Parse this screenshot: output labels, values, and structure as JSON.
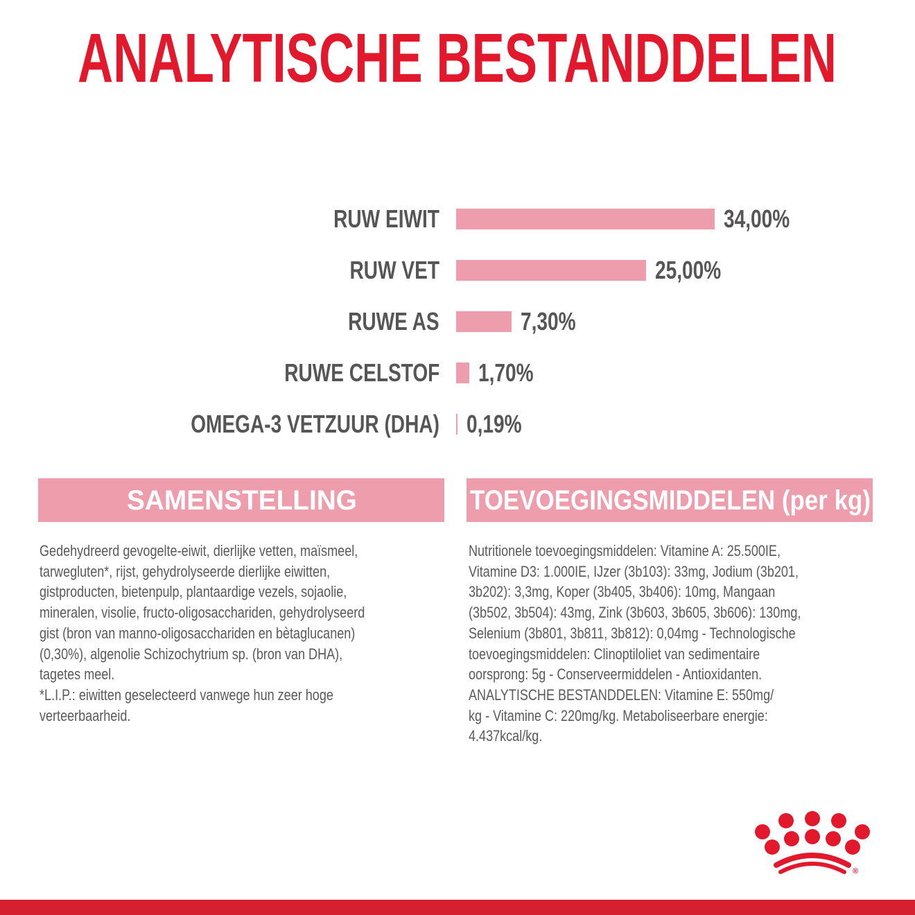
{
  "chart_data": {
    "type": "bar",
    "orientation": "horizontal",
    "title": "ANALYTISCHE BESTANDDELEN",
    "categories": [
      "RUW EIWIT",
      "RUW VET",
      "RUWE AS",
      "RUWE CELSTOF",
      "OMEGA-3 VETZUUR (DHA)"
    ],
    "values": [
      34.0,
      25.0,
      7.3,
      1.7,
      0.19
    ],
    "value_labels": [
      "34,00%",
      "25,00%",
      "7,30%",
      "1,70%",
      "0,19%"
    ],
    "unit": "%",
    "grid": false,
    "bar_color": "#ee9dac"
  },
  "colors": {
    "brand_red": "#e2182c",
    "band_pink": "#ee9dac",
    "text_gray": "#565656"
  },
  "composition": {
    "heading": "SAMENSTELLING",
    "lines": [
      "Gedehydreerd gevogelte-eiwit, dierlijke vetten, maïsmeel,",
      "tarwegluten*, rijst, gehydrolyseerde dierlijke eiwitten,",
      "gistproducten, bietenpulp, plantaardige vezels, sojaolie,",
      "mineralen, visolie, fructo-oligosacchariden, gehydrolyseerd",
      "gist (bron van manno-oligosacchariden en bètaglucanen)",
      "(0,30%), algenolie Schizochytrium sp. (bron van DHA),",
      "tagetes meel.",
      "*L.I.P.: eiwitten geselecteerd vanwege hun zeer hoge",
      "verteerbaarheid."
    ]
  },
  "additives": {
    "heading": "TOEVOEGINGSMIDDELEN (per kg)",
    "lines": [
      "Nutritionele toevoegingsmiddelen: Vitamine A: 25.500IE,",
      "Vitamine D3: 1.000IE, IJzer (3b103): 33mg, Jodium (3b201,",
      "3b202): 3,3mg, Koper (3b405, 3b406): 10mg, Mangaan",
      "(3b502, 3b504): 43mg, Zink (3b603, 3b605, 3b606): 130mg,",
      "Selenium (3b801, 3b811, 3b812): 0,04mg - Technologische",
      "toevoegingsmiddelen: Clinoptiloliet van sedimentaire",
      "oorsprong: 5g - Conserveermiddelen - Antioxidanten.",
      "ANALYTISCHE BESTANDDELEN: Vitamine E: 550mg/",
      "kg - Vitamine C: 220mg/kg. Metaboliseerbare energie:",
      "4.437kcal/kg."
    ]
  },
  "logo": {
    "name": "crown-logo",
    "mark": "®"
  }
}
